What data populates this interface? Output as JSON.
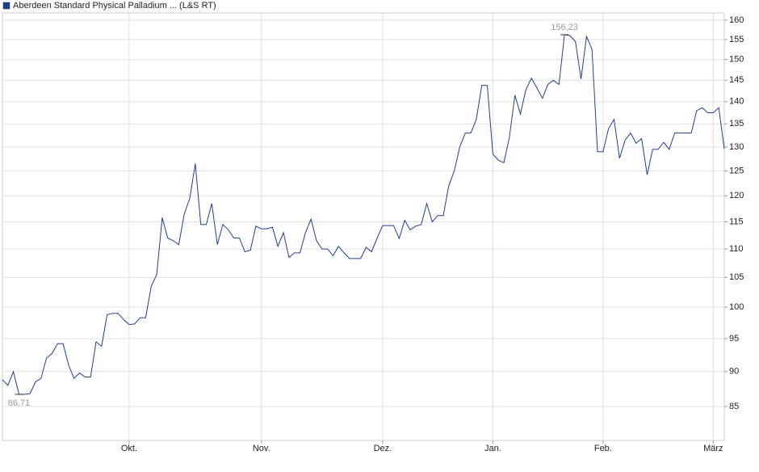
{
  "chart_data": {
    "type": "line",
    "series": [
      {
        "name": "Aberdeen Standard Physical Palladium ... (L&S RT)",
        "color": "#1f3f8f",
        "values": [
          88.8,
          88,
          90,
          86.71,
          86.71,
          86.8,
          88.5,
          89,
          92,
          92.7,
          94.2,
          94.2,
          91,
          89,
          89.8,
          89.2,
          89.2,
          94.5,
          93.8,
          98.8,
          99,
          99,
          98,
          97.2,
          97.3,
          98.3,
          98.3,
          103.5,
          105.5,
          115.8,
          112,
          111.5,
          110.8,
          116.5,
          119.5,
          126.5,
          114.5,
          114.5,
          118.5,
          110.8,
          114.5,
          113.5,
          112,
          112,
          109.5,
          109.8,
          114.2,
          113.7,
          113.7,
          114,
          110.5,
          113,
          108.5,
          109.3,
          109.3,
          113,
          115.5,
          111.5,
          110,
          110,
          108.8,
          110.5,
          109.3,
          108.3,
          108.3,
          108.3,
          110.3,
          109.5,
          112,
          114.3,
          114.3,
          114.3,
          111.9,
          115.3,
          113.5,
          114.2,
          114.5,
          118.5,
          115,
          116.2,
          116.2,
          122,
          125,
          130,
          133,
          133,
          136,
          143.8,
          143.8,
          128.5,
          127.2,
          126.7,
          132,
          141.5,
          137.2,
          142.8,
          145.5,
          143.2,
          140.8,
          144,
          145,
          144,
          156.23,
          156,
          154.5,
          145.3,
          155.8,
          152.5,
          129,
          129,
          134,
          136,
          127.6,
          131.5,
          133,
          130.8,
          131.8,
          124.2,
          129.5,
          129.5,
          131,
          129.5,
          133,
          133,
          133,
          133,
          138,
          138.6,
          137.5,
          137.5,
          138.6,
          129.6
        ]
      }
    ],
    "categories": [
      null,
      null,
      null,
      null,
      null,
      null,
      null,
      null,
      null,
      null,
      null,
      null,
      null,
      null,
      null,
      null,
      null,
      null,
      null,
      null,
      null,
      null,
      null,
      "Okt.",
      null,
      null,
      null,
      null,
      null,
      null,
      null,
      null,
      null,
      null,
      null,
      null,
      null,
      null,
      null,
      null,
      null,
      null,
      null,
      null,
      null,
      null,
      null,
      "Nov.",
      null,
      null,
      null,
      null,
      null,
      null,
      null,
      null,
      null,
      null,
      null,
      null,
      null,
      null,
      null,
      null,
      null,
      null,
      null,
      null,
      null,
      "Dez.",
      null,
      null,
      null,
      null,
      null,
      null,
      null,
      null,
      null,
      null,
      null,
      null,
      null,
      null,
      null,
      null,
      null,
      null,
      null,
      "Jan.",
      null,
      null,
      null,
      null,
      null,
      null,
      null,
      null,
      null,
      null,
      null,
      null,
      null,
      null,
      null,
      null,
      null,
      null,
      null,
      "Feb.",
      null,
      null,
      null,
      null,
      null,
      null,
      null,
      null,
      null,
      null,
      null,
      null,
      null,
      null,
      null,
      null,
      null,
      null,
      null,
      "März",
      null,
      null
    ],
    "ylim": [
      80.4,
      161.9
    ],
    "yticks": [
      85,
      90,
      95,
      100,
      105,
      110,
      115,
      120,
      125,
      130,
      135,
      140,
      145,
      150,
      155,
      160
    ],
    "log_scale": true,
    "grid": true,
    "annotations": [
      {
        "label": "156,23",
        "value": 156.23
      },
      {
        "label": "86,71",
        "value": 86.71
      }
    ]
  }
}
